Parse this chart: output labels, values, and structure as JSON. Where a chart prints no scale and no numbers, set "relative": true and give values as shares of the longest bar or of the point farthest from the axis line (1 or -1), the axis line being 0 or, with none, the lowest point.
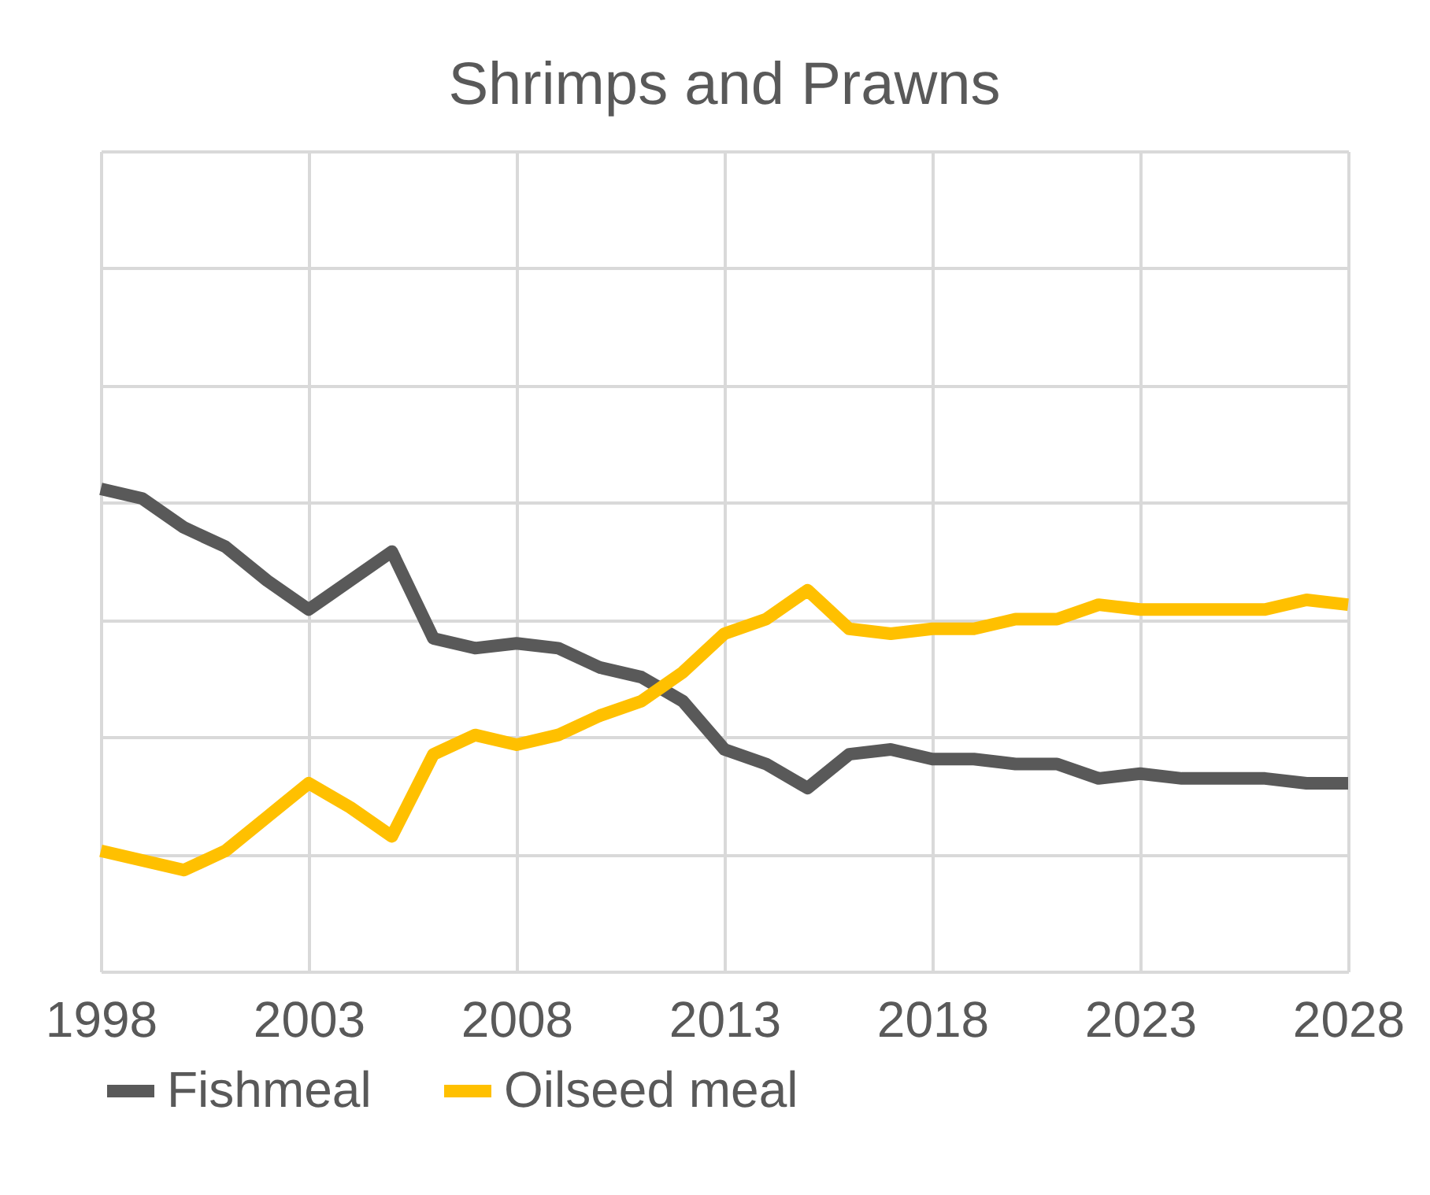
{
  "chart_data": {
    "type": "line",
    "title": "Shrimps and Prawns",
    "relative": true,
    "x": [
      1998,
      1999,
      2000,
      2001,
      2002,
      2003,
      2004,
      2005,
      2006,
      2007,
      2008,
      2009,
      2010,
      2011,
      2012,
      2013,
      2014,
      2015,
      2016,
      2017,
      2018,
      2019,
      2020,
      2021,
      2022,
      2023,
      2024,
      2025,
      2026,
      2027,
      2028
    ],
    "xlim": [
      1998,
      2028
    ],
    "xticks": [
      1998,
      2003,
      2008,
      2013,
      2018,
      2023,
      2028
    ],
    "series": [
      {
        "name": "Fishmeal",
        "color": "#595959",
        "values": [
          1,
          0.98,
          0.92,
          0.88,
          0.81,
          0.75,
          0.81,
          0.87,
          0.69,
          0.67,
          0.68,
          0.67,
          0.63,
          0.61,
          0.56,
          0.46,
          0.43,
          0.38,
          0.45,
          0.46,
          0.44,
          0.44,
          0.43,
          0.43,
          0.4,
          0.41,
          0.4,
          0.4,
          0.4,
          0.39,
          0.39
        ]
      },
      {
        "name": "Oilseed meal",
        "color": "#ffc000",
        "values": [
          0.25,
          0.23,
          0.21,
          0.25,
          0.32,
          0.39,
          0.34,
          0.28,
          0.45,
          0.49,
          0.47,
          0.49,
          0.53,
          0.56,
          0.62,
          0.7,
          0.73,
          0.79,
          0.71,
          0.7,
          0.71,
          0.71,
          0.73,
          0.73,
          0.76,
          0.75,
          0.75,
          0.75,
          0.75,
          0.77,
          0.76
        ]
      }
    ],
    "grid": true,
    "legend": "bottom",
    "tick_labels": "x",
    "marker": "none",
    "line_style": "solid"
  }
}
